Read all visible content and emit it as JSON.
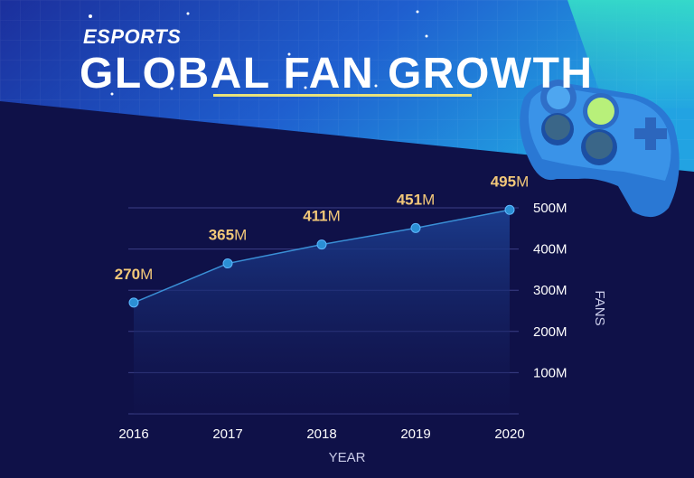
{
  "header": {
    "subtitle": "ESPORTS",
    "title": "GLOBAL FAN GROWTH"
  },
  "colors": {
    "background": "#0f1148",
    "banner": "#1e5fd0",
    "accent_yellow": "#f2c879",
    "line": "#3a8fd6",
    "point": "#2b8fd4"
  },
  "icons": [
    "gamepad-icon",
    "sparkle-icon"
  ],
  "chart_data": {
    "type": "area",
    "x": [
      "2016",
      "2017",
      "2018",
      "2019",
      "2020"
    ],
    "values": [
      270,
      365,
      411,
      451,
      495
    ],
    "data_labels": [
      {
        "value": "270",
        "unit": "M"
      },
      {
        "value": "365",
        "unit": "M"
      },
      {
        "value": "411",
        "unit": "M"
      },
      {
        "value": "451",
        "unit": "M"
      },
      {
        "value": "495",
        "unit": "M"
      }
    ],
    "y_ticks": [
      "100M",
      "200M",
      "300M",
      "400M",
      "500M"
    ],
    "y_tick_values": [
      100,
      200,
      300,
      400,
      500
    ],
    "ylim": [
      0,
      500
    ],
    "xlabel": "YEAR",
    "ylabel": "FANS",
    "y_axis_position": "right",
    "grid": true
  }
}
